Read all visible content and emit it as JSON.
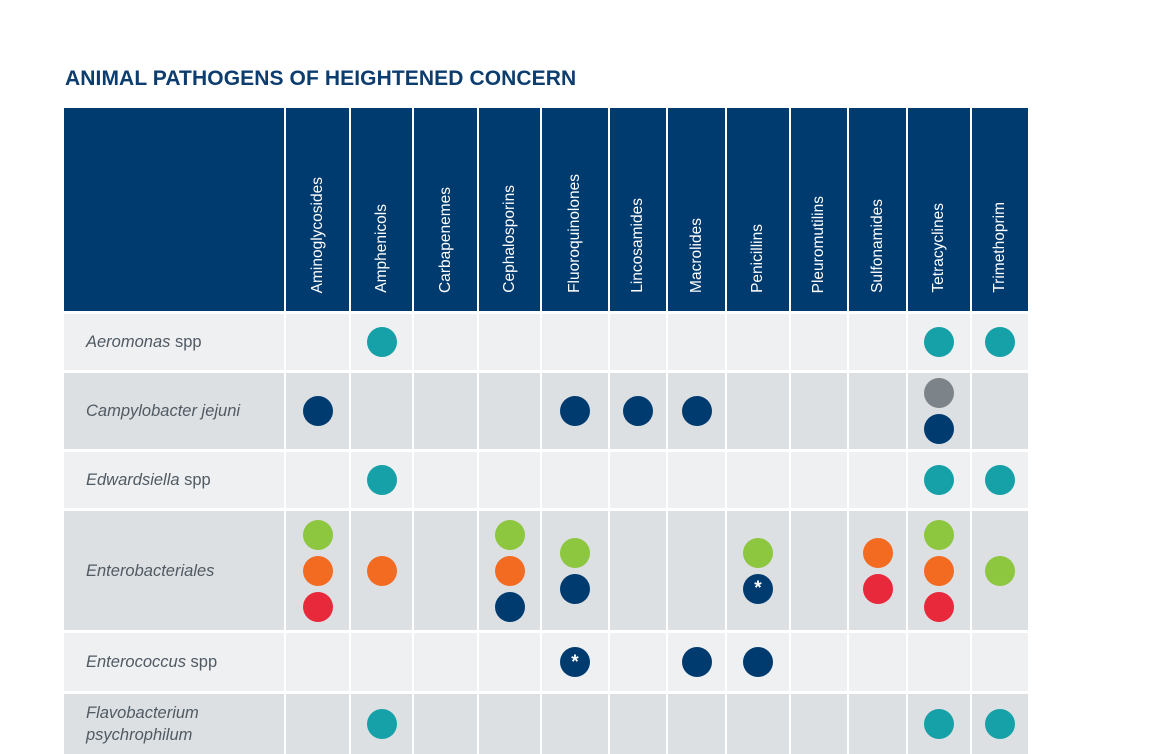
{
  "title": "ANIMAL PATHOGENS OF HEIGHTENED CONCERN",
  "colors": {
    "header_bg": "#003b6f",
    "teal": "#16a0a8",
    "navy": "#003b6f",
    "grey": "#7c8489",
    "green": "#8dc63f",
    "orange": "#f26b21",
    "red": "#e8283b"
  },
  "columns": [
    "Aminoglycosides",
    "Amphenicols",
    "Carbapenemes",
    "Cephalosporins",
    "Fluoroquinolones",
    "Lincosamides",
    "Macrolides",
    "Penicillins",
    "Pleuromutilins",
    "Sulfonamides",
    "Tetracyclines",
    "Trimethoprim"
  ],
  "rows": [
    {
      "genus": "Aeromonas",
      "suffix": " spp",
      "cells": [
        [],
        [
          "teal"
        ],
        [],
        [],
        [],
        [],
        [],
        [],
        [],
        [],
        [
          "teal"
        ],
        [
          "teal"
        ]
      ]
    },
    {
      "genus": "Campylobacter jejuni",
      "suffix": "",
      "cells": [
        [
          "navy"
        ],
        [],
        [],
        [],
        [
          "navy"
        ],
        [
          "navy"
        ],
        [
          "navy"
        ],
        [],
        [],
        [],
        [
          "grey",
          "navy"
        ],
        []
      ]
    },
    {
      "genus": "Edwardsiella",
      "suffix": " spp",
      "cells": [
        [],
        [
          "teal"
        ],
        [],
        [],
        [],
        [],
        [],
        [],
        [],
        [],
        [
          "teal"
        ],
        [
          "teal"
        ]
      ]
    },
    {
      "genus": "Enterobacteriales",
      "suffix": "",
      "cells": [
        [
          "green",
          "orange",
          "red"
        ],
        [
          "orange"
        ],
        [],
        [
          "green",
          "orange",
          "navy"
        ],
        [
          "green",
          "navy"
        ],
        [],
        [],
        [
          "green",
          "navy*"
        ],
        [],
        [
          "orange",
          "red"
        ],
        [
          "green",
          "orange",
          "red"
        ],
        [
          "green"
        ]
      ]
    },
    {
      "genus": "Enterococcus",
      "suffix": " spp",
      "cells": [
        [],
        [],
        [],
        [],
        [
          "navy*"
        ],
        [],
        [
          "navy"
        ],
        [
          "navy"
        ],
        [],
        [],
        [],
        []
      ]
    },
    {
      "genus": "Flavobacterium psychrophilum",
      "suffix": "",
      "cells": [
        [],
        [
          "teal"
        ],
        [],
        [],
        [],
        [],
        [],
        [],
        [],
        [],
        [
          "teal"
        ],
        [
          "teal"
        ]
      ]
    }
  ],
  "asterisk": "*"
}
